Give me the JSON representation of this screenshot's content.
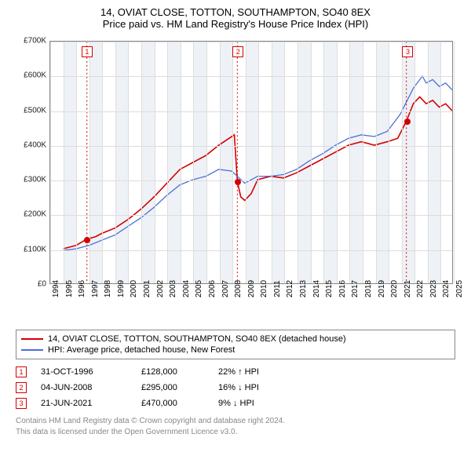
{
  "title_line1": "14, OVIAT CLOSE, TOTTON, SOUTHAMPTON, SO40 8EX",
  "title_line2": "Price paid vs. HM Land Registry's House Price Index (HPI)",
  "chart": {
    "type": "line",
    "background_color": "#ffffff",
    "grid_color": "#dddddd",
    "shade_color": "#eef2f7",
    "border_color": "#888888",
    "ymin": 0,
    "ymax": 700000,
    "ytick_step": 100000,
    "yticks": [
      "£0",
      "£100K",
      "£200K",
      "£300K",
      "£400K",
      "£500K",
      "£600K",
      "£700K"
    ],
    "xmin": 1994,
    "xmax": 2025,
    "xticks": [
      1994,
      1995,
      1996,
      1997,
      1998,
      1999,
      2000,
      2001,
      2002,
      2003,
      2004,
      2005,
      2006,
      2007,
      2008,
      2009,
      2010,
      2011,
      2012,
      2013,
      2014,
      2015,
      2016,
      2017,
      2018,
      2019,
      2020,
      2021,
      2022,
      2023,
      2024,
      2025
    ],
    "series": [
      {
        "name": "property",
        "label": "14, OVIAT CLOSE, TOTTON, SOUTHAMPTON, SO40 8EX (detached house)",
        "color": "#d40000",
        "line_width": 1.6,
        "points": [
          [
            1995.0,
            100000
          ],
          [
            1996.0,
            110000
          ],
          [
            1996.83,
            128000
          ],
          [
            1997.5,
            135000
          ],
          [
            1998.0,
            145000
          ],
          [
            1999.0,
            160000
          ],
          [
            2000.0,
            185000
          ],
          [
            2001.0,
            215000
          ],
          [
            2002.0,
            250000
          ],
          [
            2003.0,
            290000
          ],
          [
            2004.0,
            330000
          ],
          [
            2005.0,
            350000
          ],
          [
            2006.0,
            370000
          ],
          [
            2007.0,
            400000
          ],
          [
            2007.8,
            420000
          ],
          [
            2008.2,
            430000
          ],
          [
            2008.43,
            295000
          ],
          [
            2008.7,
            250000
          ],
          [
            2009.0,
            240000
          ],
          [
            2009.5,
            260000
          ],
          [
            2010.0,
            300000
          ],
          [
            2011.0,
            310000
          ],
          [
            2012.0,
            305000
          ],
          [
            2013.0,
            320000
          ],
          [
            2014.0,
            340000
          ],
          [
            2015.0,
            360000
          ],
          [
            2016.0,
            380000
          ],
          [
            2017.0,
            400000
          ],
          [
            2018.0,
            410000
          ],
          [
            2019.0,
            400000
          ],
          [
            2020.0,
            410000
          ],
          [
            2020.8,
            420000
          ],
          [
            2021.47,
            470000
          ],
          [
            2022.0,
            520000
          ],
          [
            2022.5,
            540000
          ],
          [
            2023.0,
            520000
          ],
          [
            2023.5,
            530000
          ],
          [
            2024.0,
            510000
          ],
          [
            2024.5,
            520000
          ],
          [
            2025.0,
            500000
          ]
        ]
      },
      {
        "name": "hpi",
        "label": "HPI: Average price, detached house, New Forest",
        "color": "#4a6fd4",
        "line_width": 1.3,
        "points": [
          [
            1995.0,
            95000
          ],
          [
            1996.0,
            100000
          ],
          [
            1997.0,
            110000
          ],
          [
            1998.0,
            125000
          ],
          [
            1999.0,
            140000
          ],
          [
            2000.0,
            165000
          ],
          [
            2001.0,
            190000
          ],
          [
            2002.0,
            220000
          ],
          [
            2003.0,
            255000
          ],
          [
            2004.0,
            285000
          ],
          [
            2005.0,
            300000
          ],
          [
            2006.0,
            310000
          ],
          [
            2007.0,
            330000
          ],
          [
            2008.0,
            325000
          ],
          [
            2009.0,
            290000
          ],
          [
            2010.0,
            310000
          ],
          [
            2011.0,
            310000
          ],
          [
            2012.0,
            315000
          ],
          [
            2013.0,
            330000
          ],
          [
            2014.0,
            355000
          ],
          [
            2015.0,
            375000
          ],
          [
            2016.0,
            400000
          ],
          [
            2017.0,
            420000
          ],
          [
            2018.0,
            430000
          ],
          [
            2019.0,
            425000
          ],
          [
            2020.0,
            440000
          ],
          [
            2021.0,
            490000
          ],
          [
            2022.0,
            565000
          ],
          [
            2022.7,
            600000
          ],
          [
            2023.0,
            580000
          ],
          [
            2023.5,
            590000
          ],
          [
            2024.0,
            570000
          ],
          [
            2024.5,
            580000
          ],
          [
            2025.0,
            560000
          ]
        ]
      }
    ],
    "sale_markers": [
      {
        "n": "1",
        "x": 1996.83,
        "y": 128000,
        "color": "#d40000"
      },
      {
        "n": "2",
        "x": 2008.43,
        "y": 295000,
        "color": "#d40000"
      },
      {
        "n": "3",
        "x": 2021.47,
        "y": 470000,
        "color": "#d40000"
      }
    ]
  },
  "legend": {
    "rows": [
      {
        "color": "#d40000",
        "label": "14, OVIAT CLOSE, TOTTON, SOUTHAMPTON, SO40 8EX (detached house)"
      },
      {
        "color": "#4a6fd4",
        "label": "HPI: Average price, detached house, New Forest"
      }
    ]
  },
  "sales": [
    {
      "n": "1",
      "color": "#d40000",
      "date": "31-OCT-1996",
      "price": "£128,000",
      "delta": "22% ↑ HPI"
    },
    {
      "n": "2",
      "color": "#d40000",
      "date": "04-JUN-2008",
      "price": "£295,000",
      "delta": "16% ↓ HPI"
    },
    {
      "n": "3",
      "color": "#d40000",
      "date": "21-JUN-2021",
      "price": "£470,000",
      "delta": "9% ↓ HPI"
    }
  ],
  "footer_line1": "Contains HM Land Registry data © Crown copyright and database right 2024.",
  "footer_line2": "This data is licensed under the Open Government Licence v3.0."
}
